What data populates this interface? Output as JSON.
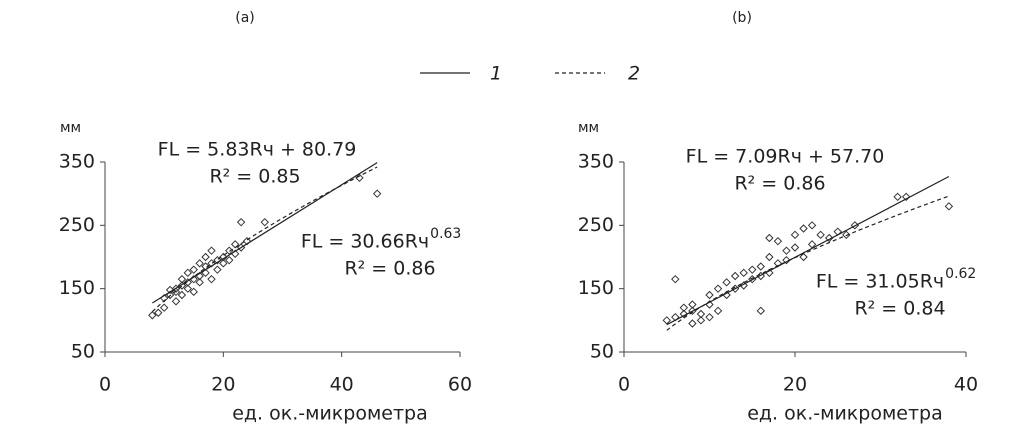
{
  "legend": [
    {
      "name": "1",
      "style": "solid"
    },
    {
      "name": "2",
      "style": "dashed"
    }
  ],
  "chart_data": [
    {
      "type": "scatter",
      "title": "(a)",
      "y_unit": "мм",
      "x_label": "ед. ок.-микрометра",
      "xlim": [
        0,
        60
      ],
      "xticks": [
        0,
        20,
        40,
        60
      ],
      "ylim": [
        50,
        350
      ],
      "yticks": [
        50,
        150,
        250,
        350
      ],
      "x": [
        8,
        9,
        10,
        10,
        11,
        11,
        12,
        12,
        12,
        13,
        13,
        13,
        14,
        14,
        14,
        15,
        15,
        15,
        16,
        16,
        16,
        17,
        17,
        17,
        18,
        18,
        18,
        19,
        19,
        20,
        20,
        21,
        21,
        22,
        22,
        23,
        23,
        24,
        27,
        43,
        46
      ],
      "y": [
        108,
        112,
        120,
        135,
        140,
        148,
        130,
        145,
        150,
        140,
        155,
        165,
        150,
        160,
        175,
        145,
        165,
        180,
        160,
        170,
        190,
        175,
        185,
        200,
        165,
        190,
        210,
        180,
        195,
        190,
        200,
        210,
        195,
        205,
        220,
        215,
        255,
        225,
        255,
        325,
        300
      ],
      "linear_fit": {
        "label": "FL = 5.83Rч + 80.79",
        "r2": "R² = 0.85",
        "slope": 5.83,
        "intercept": 80.79
      },
      "power_fit": {
        "label": "FL = 30.66Rч",
        "exponent": 0.63,
        "coefficient": 30.66,
        "r2": "R² = 0.86"
      }
    },
    {
      "type": "scatter",
      "title": "(b)",
      "y_unit": "мм",
      "x_label": "ед. ок.-микрометра",
      "xlim": [
        0,
        40
      ],
      "xticks": [
        0,
        20,
        40
      ],
      "ylim": [
        50,
        350
      ],
      "yticks": [
        50,
        150,
        250,
        350
      ],
      "x": [
        5,
        6,
        6,
        7,
        7,
        8,
        8,
        8,
        9,
        9,
        10,
        10,
        10,
        11,
        11,
        12,
        12,
        13,
        13,
        14,
        14,
        15,
        15,
        16,
        16,
        16,
        17,
        17,
        17,
        18,
        18,
        19,
        19,
        20,
        20,
        21,
        21,
        22,
        22,
        23,
        24,
        25,
        26,
        27,
        32,
        33,
        38
      ],
      "y": [
        100,
        105,
        165,
        110,
        120,
        95,
        115,
        125,
        100,
        110,
        105,
        125,
        140,
        115,
        150,
        140,
        160,
        150,
        170,
        155,
        175,
        165,
        180,
        115,
        170,
        185,
        175,
        200,
        230,
        190,
        225,
        195,
        210,
        215,
        235,
        200,
        245,
        220,
        250,
        235,
        230,
        240,
        235,
        250,
        295,
        295,
        280
      ],
      "linear_fit": {
        "label": "FL = 7.09Rч + 57.70",
        "r2": "R² = 0.86",
        "slope": 7.09,
        "intercept": 57.7
      },
      "power_fit": {
        "label": "FL = 31.05Rч",
        "exponent": 0.62,
        "coefficient": 31.05,
        "r2": "R² = 0.84"
      }
    }
  ]
}
